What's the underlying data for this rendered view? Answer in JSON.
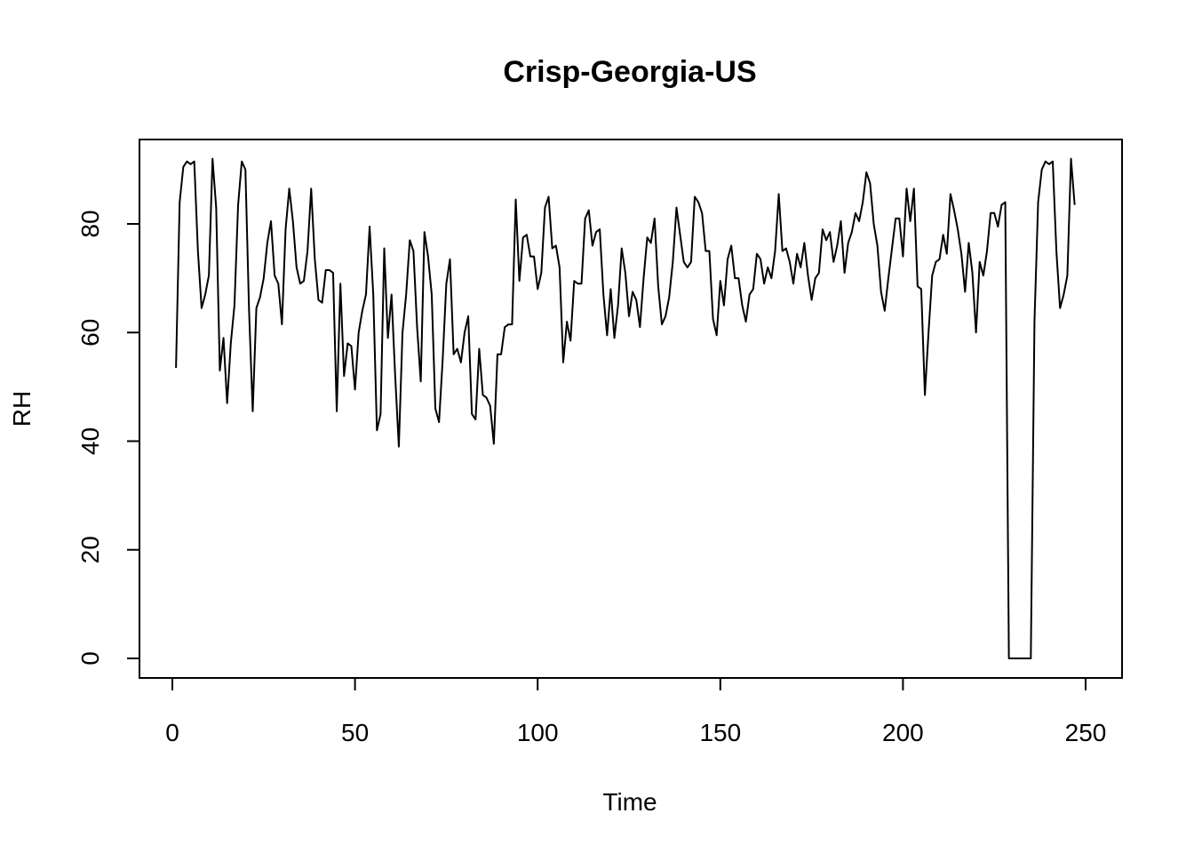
{
  "chart_data": {
    "type": "line",
    "title": "Crisp-Georgia-US",
    "xlabel": "Time",
    "ylabel": "RH",
    "xlim": [
      1,
      248
    ],
    "ylim": [
      0,
      92
    ],
    "xticks": [
      0,
      50,
      100,
      150,
      200,
      250
    ],
    "yticks": [
      0,
      20,
      40,
      60,
      80
    ],
    "grid": false,
    "legend": "none",
    "line_color": "#000000",
    "series": [
      {
        "values": [
          53.5,
          84,
          90.5,
          91.5,
          91,
          91.5,
          75,
          64.5,
          67,
          70.5,
          92,
          83,
          53,
          59,
          47,
          58,
          65,
          83.5,
          91.5,
          90,
          64,
          45.5,
          64.5,
          66.5,
          70,
          76.5,
          80.5,
          70.5,
          69,
          61.5,
          79,
          86.5,
          80.5,
          72,
          69,
          69.5,
          75,
          86.5,
          73.5,
          66,
          65.5,
          71.5,
          71.5,
          71,
          45.5,
          69,
          52,
          58,
          57.5,
          49.5,
          60,
          64,
          67,
          79.5,
          67,
          42,
          45,
          75.5,
          59,
          67,
          52,
          39,
          60,
          67,
          77,
          75,
          61,
          51,
          78.5,
          74,
          67,
          46,
          43.5,
          55,
          69,
          73.5,
          56,
          57,
          54.5,
          60,
          63,
          45,
          44,
          57,
          48.5,
          48,
          46.5,
          39.5,
          56,
          56,
          61,
          61.5,
          61.5,
          84.5,
          69.5,
          77.5,
          78,
          74,
          74,
          68,
          71,
          83,
          85,
          75.5,
          76,
          72,
          54.5,
          62,
          58.5,
          69.5,
          69,
          69,
          81,
          82.5,
          76,
          78.5,
          79,
          67,
          59.5,
          68,
          59,
          65,
          75.5,
          71,
          63,
          67.5,
          66,
          61,
          70,
          77.5,
          76.5,
          81,
          68.5,
          61.5,
          63,
          66.5,
          73,
          83,
          78,
          73,
          72,
          73,
          85,
          84,
          82,
          75,
          75,
          62.5,
          59.5,
          69.5,
          65,
          73.5,
          76,
          70,
          70,
          65,
          62,
          67,
          68,
          74.5,
          73.5,
          69,
          72,
          70,
          75,
          85.5,
          75,
          75.5,
          73,
          69,
          74.5,
          72,
          76.5,
          70.5,
          66,
          70,
          71,
          79,
          77,
          78.5,
          73,
          76,
          80.5,
          71,
          76.5,
          78.5,
          82,
          80.5,
          84,
          89.5,
          87.5,
          80,
          76,
          67.5,
          64,
          70,
          75.5,
          81,
          81,
          74,
          86.5,
          80.5,
          86.5,
          68.5,
          68,
          48.5,
          60,
          70.5,
          73,
          73.5,
          78,
          74.5,
          85.5,
          82.5,
          79,
          74.5,
          67.5,
          76.5,
          71,
          60,
          73,
          70.5,
          75,
          82,
          82,
          79.5,
          83.5,
          84,
          0,
          0,
          0,
          0,
          0,
          0,
          0,
          62,
          84,
          90,
          91.5,
          91,
          91.5,
          75,
          64.5,
          67,
          70.5,
          92,
          83.5
        ]
      }
    ]
  }
}
